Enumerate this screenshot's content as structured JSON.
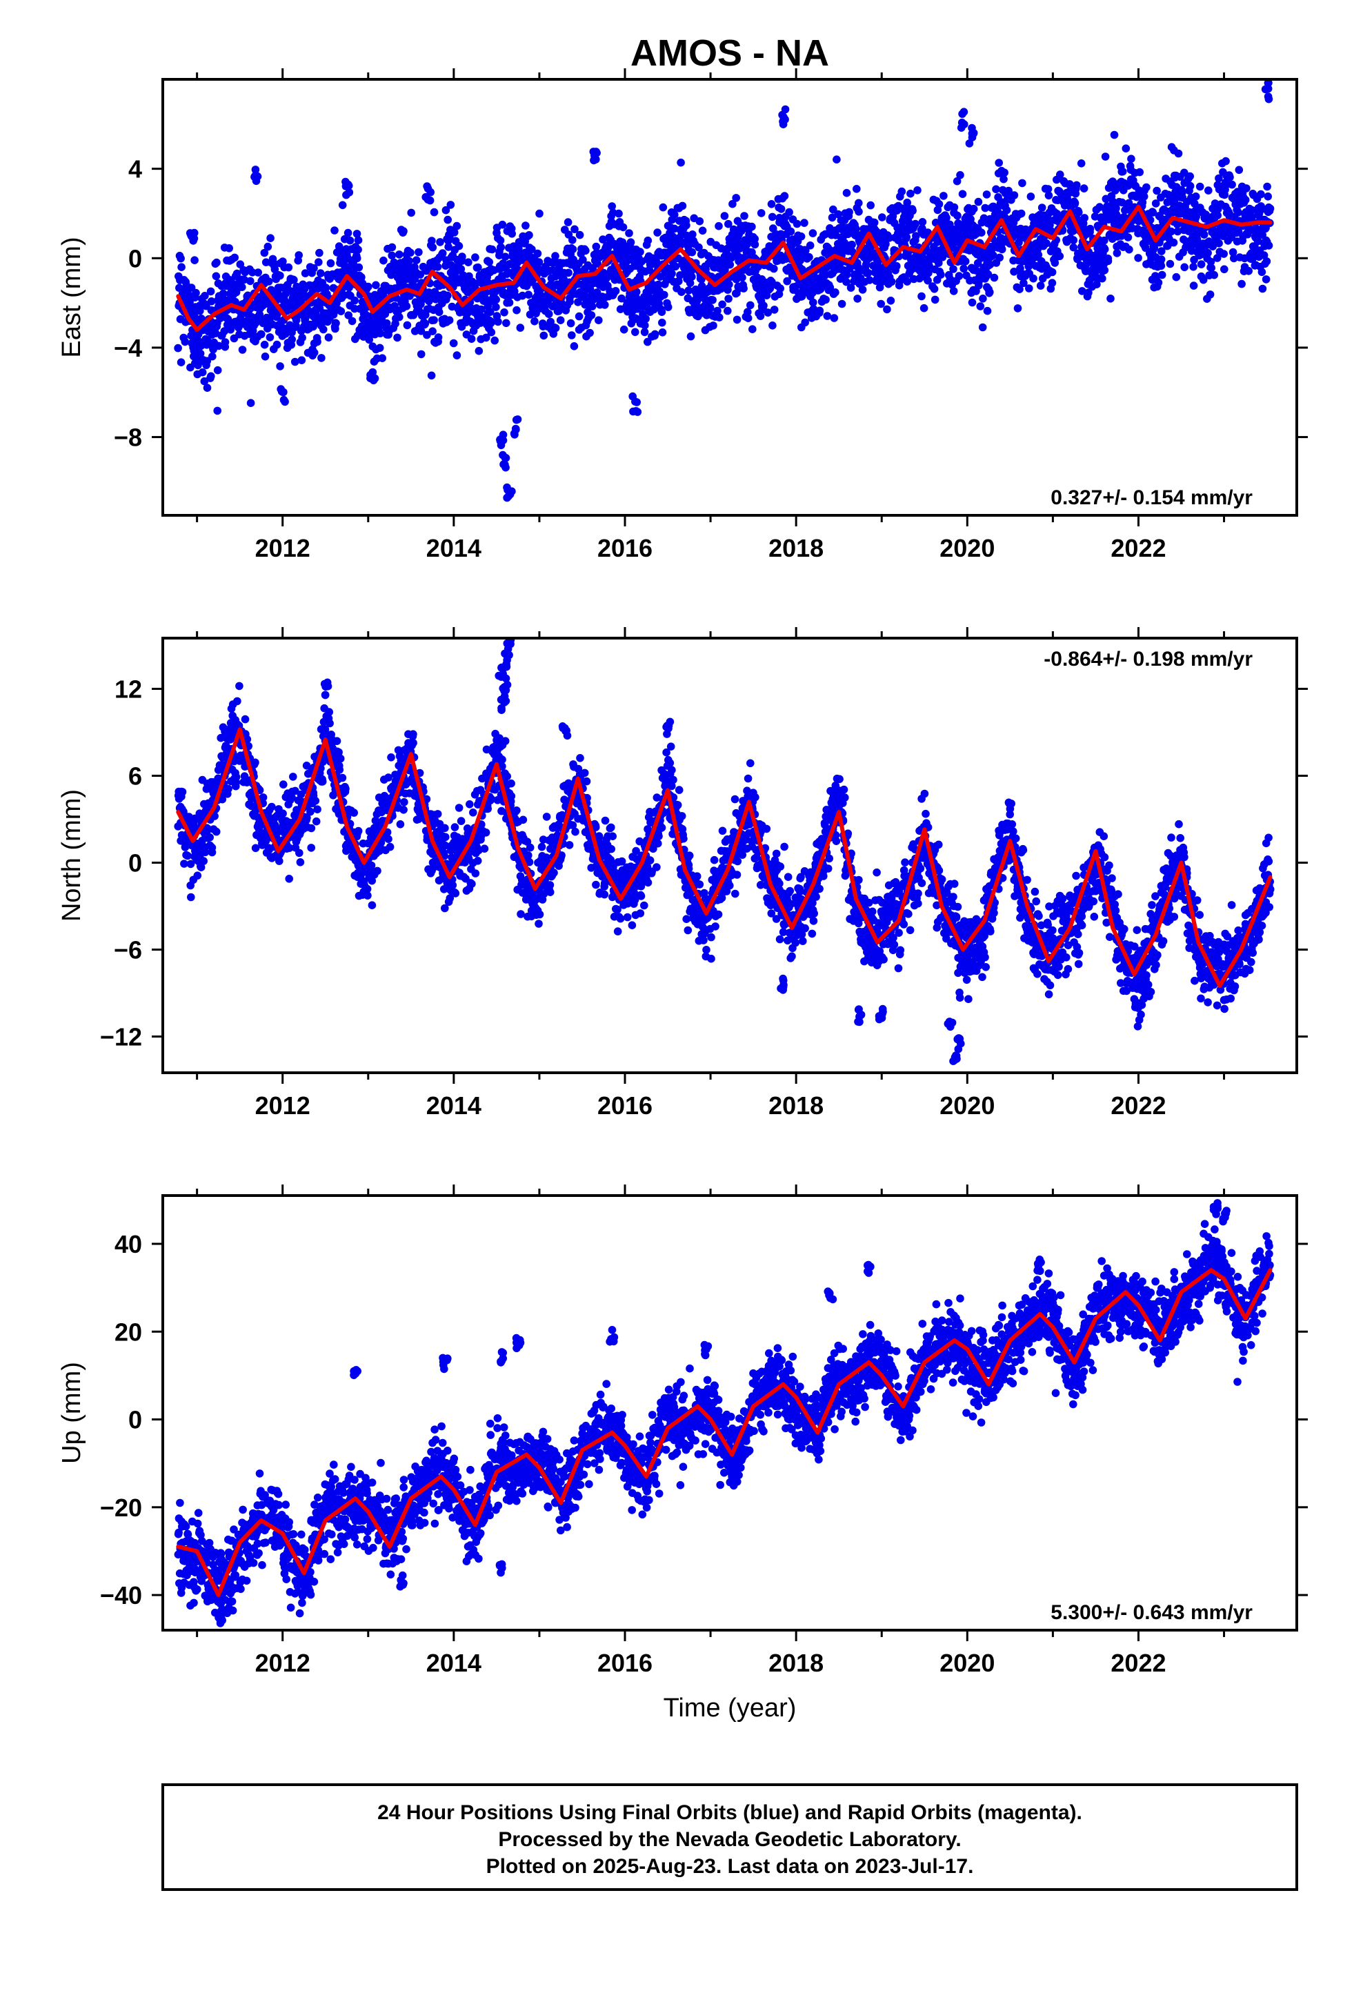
{
  "title": "AMOS - NA",
  "footer": {
    "lines": [
      "24 Hour Positions Using Final Orbits (blue) and Rapid Orbits (magenta).",
      "Processed by the Nevada Geodetic Laboratory.",
      "Plotted on 2025-Aug-23. Last data on 2023-Jul-17."
    ]
  },
  "colors": {
    "points": "#0000ee",
    "model": "#ee0000",
    "frame": "#000000",
    "text": "#000000"
  },
  "chart_data": [
    {
      "type": "scatter",
      "component": "east",
      "ylabel": "East (mm)",
      "xlabel": "",
      "xlim": [
        2010.6,
        2023.85
      ],
      "ylim": [
        -11.5,
        8
      ],
      "xticks": [
        2012,
        2014,
        2016,
        2018,
        2020,
        2022
      ],
      "yticks": [
        -8,
        -4,
        0,
        4
      ],
      "rate_text": "0.327+/- 0.154 mm/yr",
      "rate_position": "bottom-right",
      "data_start": 2010.78,
      "data_end": 2023.54,
      "model": {
        "x": [
          2010.78,
          2010.9,
          2011.0,
          2011.2,
          2011.4,
          2011.55,
          2011.75,
          2011.95,
          2012.05,
          2012.2,
          2012.4,
          2012.55,
          2012.75,
          2012.95,
          2013.05,
          2013.25,
          2013.45,
          2013.6,
          2013.75,
          2013.95,
          2014.1,
          2014.3,
          2014.5,
          2014.7,
          2014.85,
          2015.05,
          2015.25,
          2015.45,
          2015.65,
          2015.85,
          2016.05,
          2016.25,
          2016.45,
          2016.65,
          2016.85,
          2017.05,
          2017.25,
          2017.45,
          2017.65,
          2017.85,
          2018.05,
          2018.25,
          2018.45,
          2018.65,
          2018.85,
          2019.05,
          2019.25,
          2019.45,
          2019.65,
          2019.85,
          2020.0,
          2020.2,
          2020.4,
          2020.6,
          2020.8,
          2021.0,
          2021.2,
          2021.4,
          2021.6,
          2021.8,
          2022.0,
          2022.2,
          2022.4,
          2022.6,
          2022.8,
          2023.0,
          2023.2,
          2023.4,
          2023.54
        ],
        "y": [
          -1.7,
          -2.7,
          -3.2,
          -2.5,
          -2.1,
          -2.3,
          -1.2,
          -2.2,
          -2.7,
          -2.3,
          -1.6,
          -2.0,
          -0.8,
          -1.6,
          -2.4,
          -1.7,
          -1.4,
          -1.6,
          -0.6,
          -1.3,
          -2.1,
          -1.4,
          -1.2,
          -1.1,
          -0.2,
          -1.3,
          -1.8,
          -0.8,
          -0.7,
          0.1,
          -1.4,
          -1.1,
          -0.3,
          0.4,
          -0.5,
          -1.2,
          -0.6,
          -0.1,
          -0.2,
          0.7,
          -0.9,
          -0.4,
          0.1,
          -0.2,
          1.1,
          -0.3,
          0.5,
          0.3,
          1.4,
          -0.2,
          0.8,
          0.5,
          1.7,
          0.1,
          1.3,
          0.9,
          2.1,
          0.4,
          1.4,
          1.2,
          2.3,
          0.8,
          1.8,
          1.6,
          1.4,
          1.7,
          1.5,
          1.6,
          1.6
        ]
      },
      "outliers": [
        [
          2010.95,
          0.8
        ],
        [
          2011.7,
          3.8
        ],
        [
          2012.75,
          3.2
        ],
        [
          2013.7,
          2.8
        ],
        [
          2014.6,
          -9.0
        ],
        [
          2014.65,
          -10.5
        ],
        [
          2014.55,
          -8.2
        ],
        [
          2014.72,
          -7.6
        ],
        [
          2015.65,
          4.5
        ],
        [
          2017.85,
          6.3
        ],
        [
          2019.95,
          6.2
        ],
        [
          2020.05,
          5.5
        ],
        [
          2023.5,
          7.5
        ],
        [
          2016.12,
          -6.5
        ],
        [
          2012.0,
          -6.2
        ],
        [
          2013.05,
          -5.2
        ]
      ]
    },
    {
      "type": "scatter",
      "component": "north",
      "ylabel": "North (mm)",
      "xlabel": "",
      "xlim": [
        2010.6,
        2023.85
      ],
      "ylim": [
        -14.5,
        15.5
      ],
      "xticks": [
        2012,
        2014,
        2016,
        2018,
        2020,
        2022
      ],
      "yticks": [
        -12,
        -6,
        0,
        6,
        12
      ],
      "rate_text": "-0.864+/- 0.198 mm/yr",
      "rate_position": "top-right",
      "data_start": 2010.78,
      "data_end": 2023.54,
      "model": {
        "x": [
          2010.78,
          2010.95,
          2011.2,
          2011.5,
          2011.75,
          2011.95,
          2012.2,
          2012.5,
          2012.75,
          2012.95,
          2013.2,
          2013.5,
          2013.75,
          2013.95,
          2014.2,
          2014.5,
          2014.75,
          2014.95,
          2015.2,
          2015.45,
          2015.7,
          2015.95,
          2016.2,
          2016.5,
          2016.7,
          2016.95,
          2017.2,
          2017.45,
          2017.7,
          2017.95,
          2018.2,
          2018.5,
          2018.7,
          2018.95,
          2019.2,
          2019.5,
          2019.7,
          2019.95,
          2020.2,
          2020.5,
          2020.7,
          2020.95,
          2021.2,
          2021.5,
          2021.7,
          2021.95,
          2022.2,
          2022.5,
          2022.7,
          2022.95,
          2023.2,
          2023.54
        ],
        "y": [
          3.5,
          1.5,
          3.8,
          9.2,
          3.5,
          0.8,
          3.0,
          8.5,
          2.5,
          0.0,
          2.5,
          7.5,
          1.5,
          -1.0,
          1.5,
          6.8,
          1.0,
          -1.8,
          0.5,
          5.8,
          0.2,
          -2.5,
          0.0,
          5.0,
          -0.5,
          -3.5,
          -0.5,
          4.2,
          -1.5,
          -4.5,
          -1.5,
          3.5,
          -2.5,
          -5.5,
          -4.0,
          2.3,
          -3.0,
          -6.0,
          -4.0,
          1.5,
          -3.0,
          -6.8,
          -4.5,
          0.8,
          -4.5,
          -7.7,
          -5.0,
          0.0,
          -5.5,
          -8.5,
          -6.0,
          -1.0
        ]
      },
      "outliers": [
        [
          2014.55,
          13.2
        ],
        [
          2014.6,
          12.3
        ],
        [
          2014.62,
          14.0
        ],
        [
          2014.58,
          11.0
        ],
        [
          2012.5,
          12.0
        ],
        [
          2016.5,
          9.3
        ],
        [
          2019.85,
          -13.5
        ],
        [
          2019.9,
          -12.5
        ],
        [
          2019.8,
          -11.0
        ],
        [
          2019.0,
          -10.5
        ],
        [
          2018.75,
          -10.5
        ],
        [
          2017.85,
          -8.5
        ],
        [
          2015.3,
          9.0
        ],
        [
          2014.65,
          15.2
        ]
      ]
    },
    {
      "type": "scatter",
      "component": "up",
      "ylabel": "Up (mm)",
      "xlabel": "Time (year)",
      "xlim": [
        2010.6,
        2023.85
      ],
      "ylim": [
        -48,
        51
      ],
      "xticks": [
        2012,
        2014,
        2016,
        2018,
        2020,
        2022
      ],
      "yticks": [
        -40,
        -20,
        0,
        20,
        40
      ],
      "rate_text": "5.300+/- 0.643 mm/yr",
      "rate_position": "bottom-right",
      "data_start": 2010.78,
      "data_end": 2023.54,
      "model": {
        "x": [
          2010.78,
          2011.0,
          2011.25,
          2011.5,
          2011.75,
          2012.0,
          2012.25,
          2012.5,
          2012.85,
          2013.0,
          2013.25,
          2013.5,
          2013.85,
          2014.0,
          2014.25,
          2014.5,
          2014.85,
          2015.0,
          2015.25,
          2015.5,
          2015.85,
          2016.0,
          2016.25,
          2016.5,
          2016.85,
          2017.0,
          2017.25,
          2017.5,
          2017.85,
          2018.0,
          2018.25,
          2018.5,
          2018.85,
          2019.0,
          2019.25,
          2019.5,
          2019.85,
          2020.0,
          2020.25,
          2020.5,
          2020.85,
          2021.0,
          2021.25,
          2021.5,
          2021.85,
          2022.0,
          2022.25,
          2022.5,
          2022.85,
          2023.0,
          2023.25,
          2023.54
        ],
        "y": [
          -29,
          -30,
          -40,
          -28,
          -23,
          -26,
          -35,
          -23,
          -18,
          -21,
          -29,
          -18,
          -13,
          -16,
          -24,
          -12,
          -8,
          -11,
          -19,
          -7,
          -3,
          -6,
          -13,
          -2,
          3,
          0,
          -8,
          3,
          8,
          5,
          -3,
          8,
          13,
          10,
          3,
          13,
          18,
          16,
          8,
          18,
          24,
          21,
          13,
          23,
          29,
          26,
          18,
          29,
          34,
          32,
          23,
          34
        ]
      },
      "outliers": [
        [
          2012.85,
          10
        ],
        [
          2013.9,
          13
        ],
        [
          2014.55,
          14
        ],
        [
          2014.75,
          17
        ],
        [
          2015.85,
          19
        ],
        [
          2016.95,
          16
        ],
        [
          2018.4,
          28
        ],
        [
          2018.85,
          34
        ],
        [
          2020.85,
          35
        ],
        [
          2022.9,
          48
        ],
        [
          2023.0,
          46
        ],
        [
          2011.3,
          -45
        ],
        [
          2011.4,
          -43
        ],
        [
          2014.55,
          -34
        ],
        [
          2013.4,
          -37
        ]
      ]
    }
  ]
}
